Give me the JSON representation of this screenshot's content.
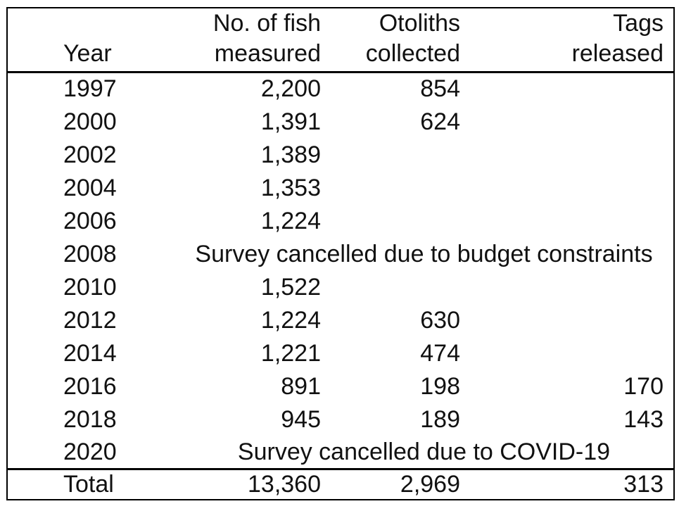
{
  "table": {
    "header": {
      "year": "Year",
      "fish_line1": "No. of fish",
      "fish_line2": "measured",
      "otoliths_line1": "Otoliths",
      "otoliths_line2": "collected",
      "tags_line1": "Tags",
      "tags_line2": "released"
    },
    "rows": [
      {
        "year": "1997",
        "fish": "2,200",
        "otoliths": "854",
        "tags": ""
      },
      {
        "year": "2000",
        "fish": "1,391",
        "otoliths": "624",
        "tags": ""
      },
      {
        "year": "2002",
        "fish": "1,389",
        "otoliths": "",
        "tags": ""
      },
      {
        "year": "2004",
        "fish": "1,353",
        "otoliths": "",
        "tags": ""
      },
      {
        "year": "2006",
        "fish": "1,224",
        "otoliths": "",
        "tags": ""
      },
      {
        "year": "2008",
        "note": "Survey cancelled due to budget constraints"
      },
      {
        "year": "2010",
        "fish": "1,522",
        "otoliths": "",
        "tags": ""
      },
      {
        "year": "2012",
        "fish": "1,224",
        "otoliths": "630",
        "tags": ""
      },
      {
        "year": "2014",
        "fish": "1,221",
        "otoliths": "474",
        "tags": ""
      },
      {
        "year": "2016",
        "fish": "891",
        "otoliths": "198",
        "tags": "170"
      },
      {
        "year": "2018",
        "fish": "945",
        "otoliths": "189",
        "tags": "143"
      },
      {
        "year": "2020",
        "note": "Survey cancelled due to COVID-19"
      }
    ],
    "total": {
      "label": "Total",
      "fish": "13,360",
      "otoliths": "2,969",
      "tags": "313"
    },
    "colors": {
      "text": "#111111",
      "border": "#000000",
      "background": "#ffffff"
    }
  }
}
